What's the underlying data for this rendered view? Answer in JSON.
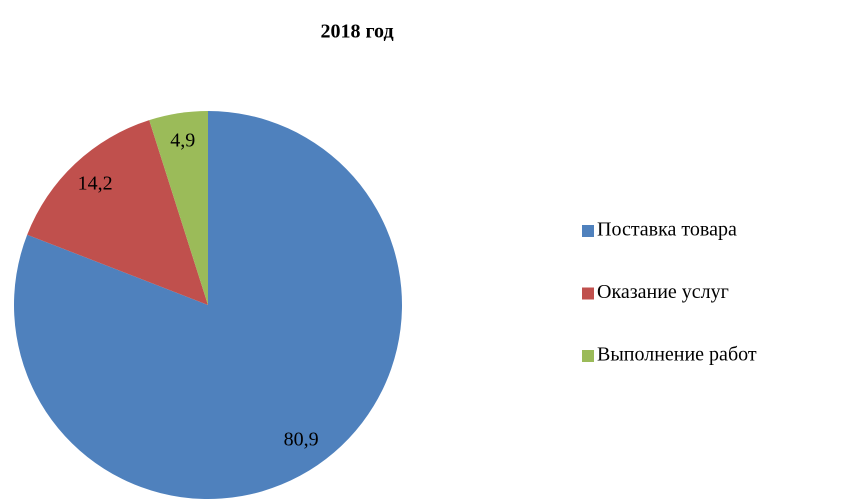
{
  "chart_data": {
    "type": "pie",
    "title": "2018 год",
    "categories": [
      "Поставка товара",
      "Оказание услуг",
      "Выполнение работ"
    ],
    "values": [
      80.9,
      14.2,
      4.9
    ],
    "value_labels": [
      "80,9",
      "14,2",
      "4,9"
    ],
    "colors": [
      "#4f81bd",
      "#c0504d",
      "#9bbb59"
    ],
    "legend": "right"
  }
}
